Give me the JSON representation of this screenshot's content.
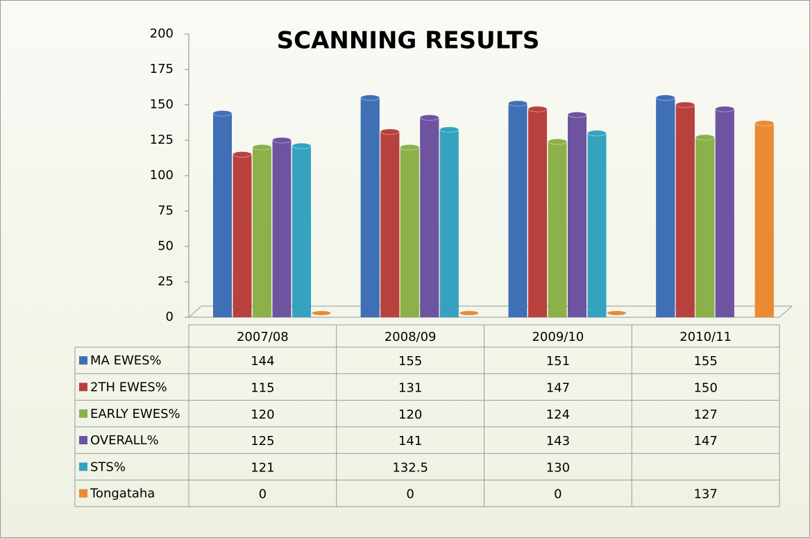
{
  "chart_data": {
    "type": "bar",
    "title": "SCANNING RESULTS",
    "categories": [
      "2007/08",
      "2008/09",
      "2009/10",
      "2010/11"
    ],
    "series": [
      {
        "name": "MA EWES%",
        "color": "#3f6fb5",
        "values": [
          144,
          155,
          151,
          155
        ]
      },
      {
        "name": "2TH EWES%",
        "color": "#b8413e",
        "values": [
          115,
          131,
          147,
          150
        ]
      },
      {
        "name": "EARLY EWES%",
        "color": "#8cb04a",
        "values": [
          120,
          120,
          124,
          127
        ]
      },
      {
        "name": "OVERALL%",
        "color": "#6e54a0",
        "values": [
          125,
          141,
          143,
          147
        ]
      },
      {
        "name": "STS%",
        "color": "#35a3bf",
        "values": [
          121,
          132.5,
          130,
          null
        ]
      },
      {
        "name": "Tongataha",
        "color": "#ea8a33",
        "values": [
          0,
          0,
          0,
          137
        ]
      }
    ],
    "ylim": [
      0,
      200
    ],
    "yticks": [
      0,
      25,
      50,
      75,
      100,
      125,
      150,
      175,
      200
    ]
  }
}
